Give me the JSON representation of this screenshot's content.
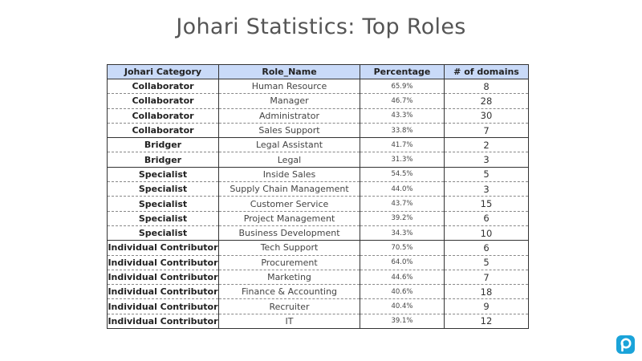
{
  "title": "Johari Statistics: Top Roles",
  "table": {
    "headers": [
      "Johari Category",
      "Role_Name",
      "Percentage",
      "# of domains"
    ],
    "rows": [
      {
        "category": "Collaborator",
        "role": "Human Resource",
        "percentage": "65.9%",
        "domains": "8"
      },
      {
        "category": "Collaborator",
        "role": "Manager",
        "percentage": "46.7%",
        "domains": "28"
      },
      {
        "category": "Collaborator",
        "role": "Administrator",
        "percentage": "43.3%",
        "domains": "30"
      },
      {
        "category": "Collaborator",
        "role": "Sales Support",
        "percentage": "33.8%",
        "domains": "7"
      },
      {
        "category": "Bridger",
        "role": "Legal Assistant",
        "percentage": "41.7%",
        "domains": "2"
      },
      {
        "category": "Bridger",
        "role": "Legal",
        "percentage": "31.3%",
        "domains": "3"
      },
      {
        "category": "Specialist",
        "role": "Inside Sales",
        "percentage": "54.5%",
        "domains": "5"
      },
      {
        "category": "Specialist",
        "role": "Supply Chain Management",
        "percentage": "44.0%",
        "domains": "3"
      },
      {
        "category": "Specialist",
        "role": "Customer Service",
        "percentage": "43.7%",
        "domains": "15"
      },
      {
        "category": "Specialist",
        "role": "Project Management",
        "percentage": "39.2%",
        "domains": "6"
      },
      {
        "category": "Specialist",
        "role": "Business Development",
        "percentage": "34.3%",
        "domains": "10"
      },
      {
        "category": "Individual Contributor",
        "role": "Tech Support",
        "percentage": "70.5%",
        "domains": "6"
      },
      {
        "category": "Individual Contributor",
        "role": "Procurement",
        "percentage": "64.0%",
        "domains": "5"
      },
      {
        "category": "Individual Contributor",
        "role": "Marketing",
        "percentage": "44.6%",
        "domains": "7"
      },
      {
        "category": "Individual Contributor",
        "role": "Finance & Accounting",
        "percentage": "40.6%",
        "domains": "18"
      },
      {
        "category": "Individual Contributor",
        "role": "Recruiter",
        "percentage": "40.4%",
        "domains": "9"
      },
      {
        "category": "Individual Contributor",
        "role": "IT",
        "percentage": "39.1%",
        "domains": "12"
      }
    ]
  },
  "colors": {
    "header_bg": "#c9daf8",
    "logo": "#1aa3d9"
  },
  "logo": {
    "icon": "p-logo-icon"
  }
}
